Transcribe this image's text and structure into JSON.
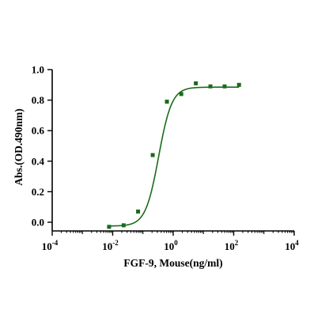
{
  "chart_data": {
    "type": "scatter",
    "title": "",
    "xlabel": "FGF-9, Mouse(ng/ml)",
    "ylabel": "Abs.(OD.490nm)",
    "x_scale": "log10",
    "xlim": [
      0.0001,
      10000
    ],
    "ylim": [
      -0.05,
      1.0
    ],
    "x_ticks": [
      {
        "base": "10",
        "exp": "-4"
      },
      {
        "base": "10",
        "exp": "-2"
      },
      {
        "base": "10",
        "exp": "0"
      },
      {
        "base": "10",
        "exp": "2"
      },
      {
        "base": "10",
        "exp": "4"
      }
    ],
    "y_ticks": [
      "0.0",
      "0.2",
      "0.4",
      "0.6",
      "0.8",
      "1.0"
    ],
    "color": "#1a6b1a",
    "grid": false,
    "series": [
      {
        "marker": "square",
        "x": [
          0.0076,
          0.023,
          0.069,
          0.21,
          0.62,
          1.85,
          5.6,
          17,
          50,
          150
        ],
        "y": [
          -0.03,
          -0.02,
          0.07,
          0.44,
          0.79,
          0.84,
          0.91,
          0.89,
          0.89,
          0.9
        ]
      }
    ],
    "fit_curve": {
      "model": "4PL",
      "bottom": -0.025,
      "top": 0.885,
      "ec50": 0.33,
      "hill": 2.0
    }
  }
}
